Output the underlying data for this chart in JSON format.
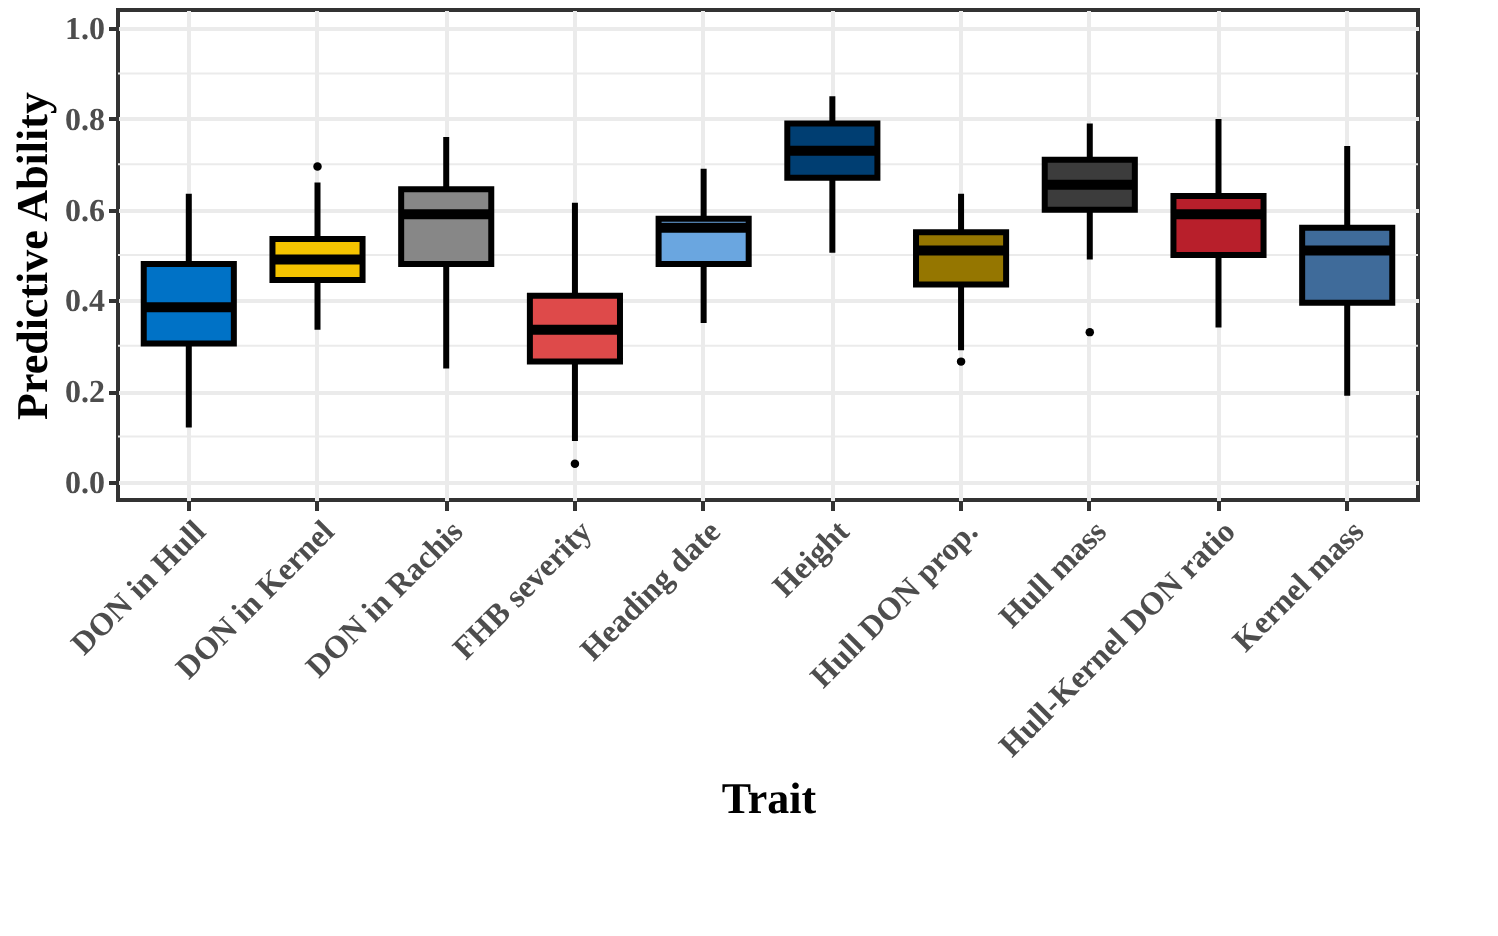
{
  "chart_data": {
    "type": "box",
    "xlabel": "Trait",
    "ylabel": "Predictive Ability",
    "categories": [
      "DON in Hull",
      "DON in Kernel",
      "DON in Rachis",
      "FHB severity",
      "Heading date",
      "Height",
      "Hull DON prop.",
      "Hull mass",
      "Hull-Kernel DON ratio",
      "Kernel mass"
    ],
    "colors": [
      "#0072c6",
      "#f5c400",
      "#878787",
      "#de4a4a",
      "#6aa6e0",
      "#003e72",
      "#957600",
      "#3c3c3c",
      "#b81f2b",
      "#3f6b9a"
    ],
    "boxes": [
      {
        "low": 0.12,
        "q1": 0.305,
        "median": 0.385,
        "q3": 0.48,
        "high": 0.635
      },
      {
        "low": 0.335,
        "q1": 0.445,
        "median": 0.49,
        "q3": 0.535,
        "high": 0.66,
        "outliers": [
          0.695
        ]
      },
      {
        "low": 0.25,
        "q1": 0.48,
        "median": 0.59,
        "q3": 0.645,
        "high": 0.76
      },
      {
        "low": 0.09,
        "q1": 0.265,
        "median": 0.335,
        "q3": 0.41,
        "high": 0.615,
        "outliers": [
          0.04
        ]
      },
      {
        "low": 0.35,
        "q1": 0.48,
        "median": 0.56,
        "q3": 0.58,
        "high": 0.69
      },
      {
        "low": 0.505,
        "q1": 0.67,
        "median": 0.73,
        "q3": 0.79,
        "high": 0.85
      },
      {
        "low": 0.29,
        "q1": 0.435,
        "median": 0.51,
        "q3": 0.55,
        "high": 0.635,
        "outliers": [
          0.265
        ]
      },
      {
        "low": 0.49,
        "q1": 0.6,
        "median": 0.655,
        "q3": 0.71,
        "high": 0.79,
        "outliers": [
          0.33
        ]
      },
      {
        "low": 0.34,
        "q1": 0.5,
        "median": 0.59,
        "q3": 0.63,
        "high": 0.8
      },
      {
        "low": 0.19,
        "q1": 0.395,
        "median": 0.51,
        "q3": 0.56,
        "high": 0.74
      }
    ],
    "ylim": [
      -0.04,
      1.04
    ],
    "yticks": [
      {
        "value": 0.0,
        "label": "0.0"
      },
      {
        "value": 0.1,
        "label": null
      },
      {
        "value": 0.2,
        "label": "0.2"
      },
      {
        "value": 0.3,
        "label": null
      },
      {
        "value": 0.4,
        "label": "0.4"
      },
      {
        "value": 0.5,
        "label": null
      },
      {
        "value": 0.6,
        "label": "0.6"
      },
      {
        "value": 0.7,
        "label": null
      },
      {
        "value": 0.8,
        "label": "0.8"
      },
      {
        "value": 0.9,
        "label": null
      },
      {
        "value": 1.0,
        "label": "1.0"
      }
    ],
    "grid": true
  }
}
